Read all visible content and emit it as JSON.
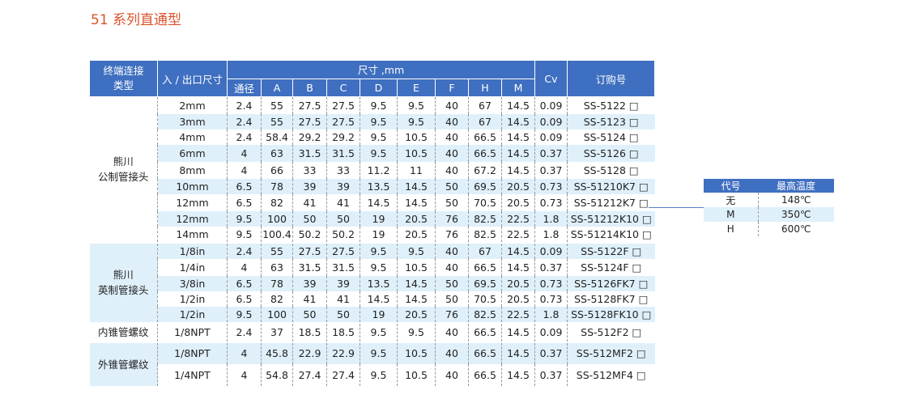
{
  "title": "51 系列直通型",
  "header": {
    "col_type": "终端连接类型",
    "col_size": "入 / 出口尺寸",
    "col_dim": "尺寸 ,mm",
    "col_cv": "Cv",
    "col_order": "订购号",
    "dims": [
      "通径",
      "A",
      "B",
      "C",
      "D",
      "E",
      "F",
      "H",
      "M"
    ]
  },
  "groups": [
    {
      "name": "熊川公制管接头",
      "rows": [
        [
          "2mm",
          "2.4",
          "55",
          "27.5",
          "27.5",
          "9.5",
          "9.5",
          "40",
          "67",
          "14.5",
          "0.09",
          "SS-5122 □"
        ],
        [
          "3mm",
          "2.4",
          "55",
          "27.5",
          "27.5",
          "9.5",
          "9.5",
          "40",
          "67",
          "14.5",
          "0.09",
          "SS-5123 □"
        ],
        [
          "4mm",
          "2.4",
          "58.4",
          "29.2",
          "29.2",
          "9.5",
          "10.5",
          "40",
          "66.5",
          "14.5",
          "0.09",
          "SS-5124 □"
        ],
        [
          "6mm",
          "4",
          "63",
          "31.5",
          "31.5",
          "9.5",
          "10.5",
          "40",
          "66.5",
          "14.5",
          "0.37",
          "SS-5126 □"
        ],
        [
          "8mm",
          "4",
          "66",
          "33",
          "33",
          "11.2",
          "11",
          "40",
          "67.2",
          "14.5",
          "0.37",
          "SS-5128 □"
        ],
        [
          "10mm",
          "6.5",
          "78",
          "39",
          "39",
          "13.5",
          "14.5",
          "50",
          "69.5",
          "20.5",
          "0.73",
          "SS-51210K7 □"
        ],
        [
          "12mm",
          "6.5",
          "82",
          "41",
          "41",
          "14.5",
          "14.5",
          "50",
          "70.5",
          "20.5",
          "0.73",
          "SS-51212K7 □"
        ],
        [
          "12mm",
          "9.5",
          "100",
          "50",
          "50",
          "19",
          "20.5",
          "76",
          "82.5",
          "22.5",
          "1.8",
          "SS-51212K10 □"
        ],
        [
          "14mm",
          "9.5",
          "100.4",
          "50.2",
          "50.2",
          "19",
          "20.5",
          "76",
          "82.5",
          "22.5",
          "1.8",
          "SS-51214K10 □"
        ]
      ]
    },
    {
      "name": "熊川英制管接头",
      "rows": [
        [
          "1/8in",
          "2.4",
          "55",
          "27.5",
          "27.5",
          "9.5",
          "9.5",
          "40",
          "67",
          "14.5",
          "0.09",
          "SS-5122F □"
        ],
        [
          "1/4in",
          "4",
          "63",
          "31.5",
          "31.5",
          "9.5",
          "10.5",
          "40",
          "66.5",
          "14.5",
          "0.37",
          "SS-5124F □"
        ],
        [
          "3/8in",
          "6.5",
          "78",
          "39",
          "39",
          "13.5",
          "14.5",
          "50",
          "69.5",
          "20.5",
          "0.73",
          "SS-5126FK7 □"
        ],
        [
          "1/2in",
          "6.5",
          "82",
          "41",
          "41",
          "14.5",
          "14.5",
          "50",
          "70.5",
          "20.5",
          "0.73",
          "SS-5128FK7 □"
        ],
        [
          "1/2in",
          "9.5",
          "100",
          "50",
          "50",
          "19",
          "20.5",
          "76",
          "82.5",
          "22.5",
          "1.8",
          "SS-5128FK10 □"
        ]
      ]
    },
    {
      "name": "内锥管螺纹",
      "rows": [
        [
          "1/8NPT",
          "2.4",
          "37",
          "18.5",
          "18.5",
          "9.5",
          "9.5",
          "40",
          "66.5",
          "14.5",
          "0.09",
          "SS-512F2 □"
        ]
      ]
    },
    {
      "name": "外锥管螺纹",
      "rows": [
        [
          "1/8NPT",
          "4",
          "45.8",
          "22.9",
          "22.9",
          "9.5",
          "10.5",
          "40",
          "66.5",
          "14.5",
          "0.37",
          "SS-512MF2 □"
        ],
        [
          "1/4NPT",
          "4",
          "54.8",
          "27.4",
          "27.4",
          "9.5",
          "10.5",
          "40",
          "66.5",
          "14.5",
          "0.37",
          "SS-512MF4 □"
        ]
      ]
    }
  ],
  "temp_table": {
    "headers": [
      "代号",
      "最高温度"
    ],
    "rows": [
      [
        "无",
        "148℃"
      ],
      [
        "M",
        "350℃"
      ],
      [
        "H",
        "600℃"
      ]
    ]
  }
}
